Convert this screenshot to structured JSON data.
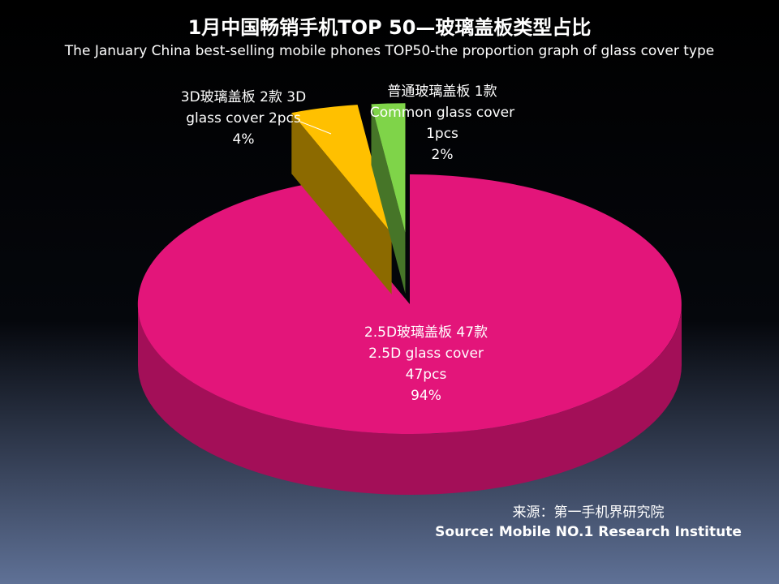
{
  "chart_data": {
    "type": "pie3d",
    "title": "1月中国畅销手机TOP 50—玻璃盖板类型占比",
    "subtitle": "The January China best-selling mobile phones TOP50-the proportion graph of glass cover type",
    "categories": [
      [
        "2.5D玻璃盖板 47款",
        "2.5D glass cover",
        "47pcs"
      ],
      [
        "3D玻璃盖板 2款 3D",
        "glass cover 2pcs"
      ],
      [
        "普通玻璃盖板 1款",
        "Common glass cover",
        "1pcs"
      ]
    ],
    "values": [
      94,
      4,
      2
    ],
    "value_labels": [
      "94%",
      "4%",
      "2%"
    ],
    "colors": [
      "#e3157a",
      "#ffc000",
      "#7fd449"
    ],
    "source": [
      "来源：第一手机界研究院",
      "Source: Mobile NO.1 Research Institute"
    ]
  }
}
